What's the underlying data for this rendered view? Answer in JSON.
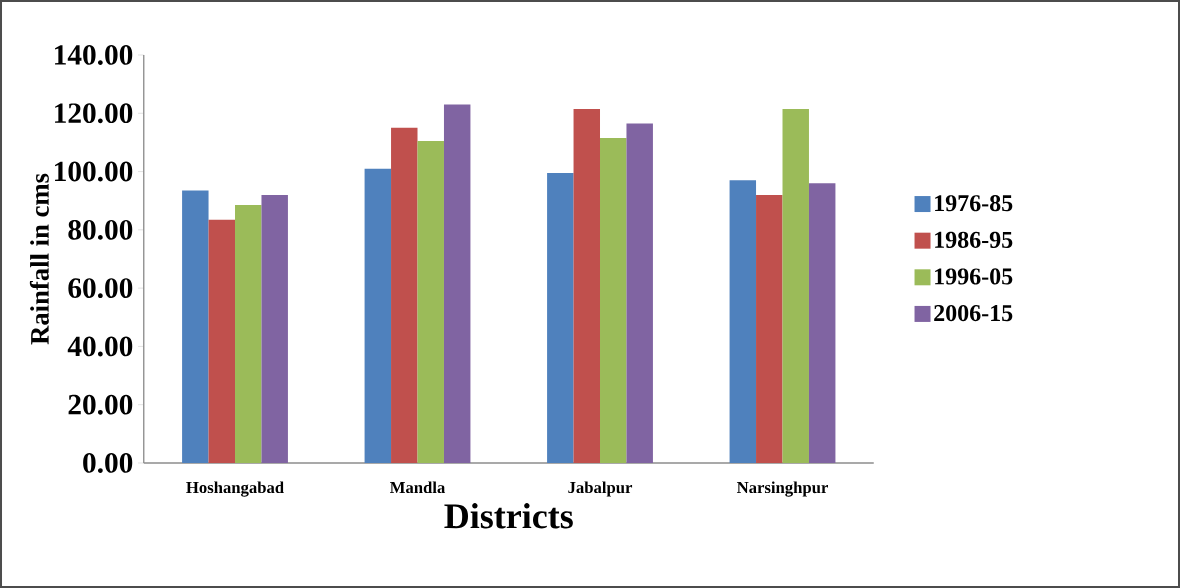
{
  "chart_data": {
    "type": "bar",
    "xlabel": "Districts",
    "ylabel": "Rainfall in cms",
    "categories": [
      "Hoshangabad",
      "Mandla",
      "Jabalpur",
      "Narsinghpur"
    ],
    "series": [
      {
        "name": "1976-85",
        "color": "#4f81bd",
        "values": [
          93.5,
          101,
          99.5,
          97
        ]
      },
      {
        "name": "1986-95",
        "color": "#c0504d",
        "values": [
          83.5,
          115,
          121.5,
          92
        ]
      },
      {
        "name": "1996-05",
        "color": "#9bbb59",
        "values": [
          88.5,
          110.5,
          111.5,
          121.5
        ]
      },
      {
        "name": "2006-15",
        "color": "#8064a2",
        "values": [
          92,
          123,
          116.5,
          96
        ]
      }
    ],
    "ylim": [
      0,
      140
    ],
    "yticks": [
      {
        "value": 0,
        "label": "0.00"
      },
      {
        "value": 20,
        "label": "20.00"
      },
      {
        "value": 40,
        "label": "40.00"
      },
      {
        "value": 60,
        "label": "60.00"
      },
      {
        "value": 80,
        "label": "80.00"
      },
      {
        "value": 100,
        "label": "100.00"
      },
      {
        "value": 120,
        "label": "120.00"
      },
      {
        "value": 140,
        "label": "140.00"
      }
    ],
    "grid": false,
    "legend": "right"
  }
}
